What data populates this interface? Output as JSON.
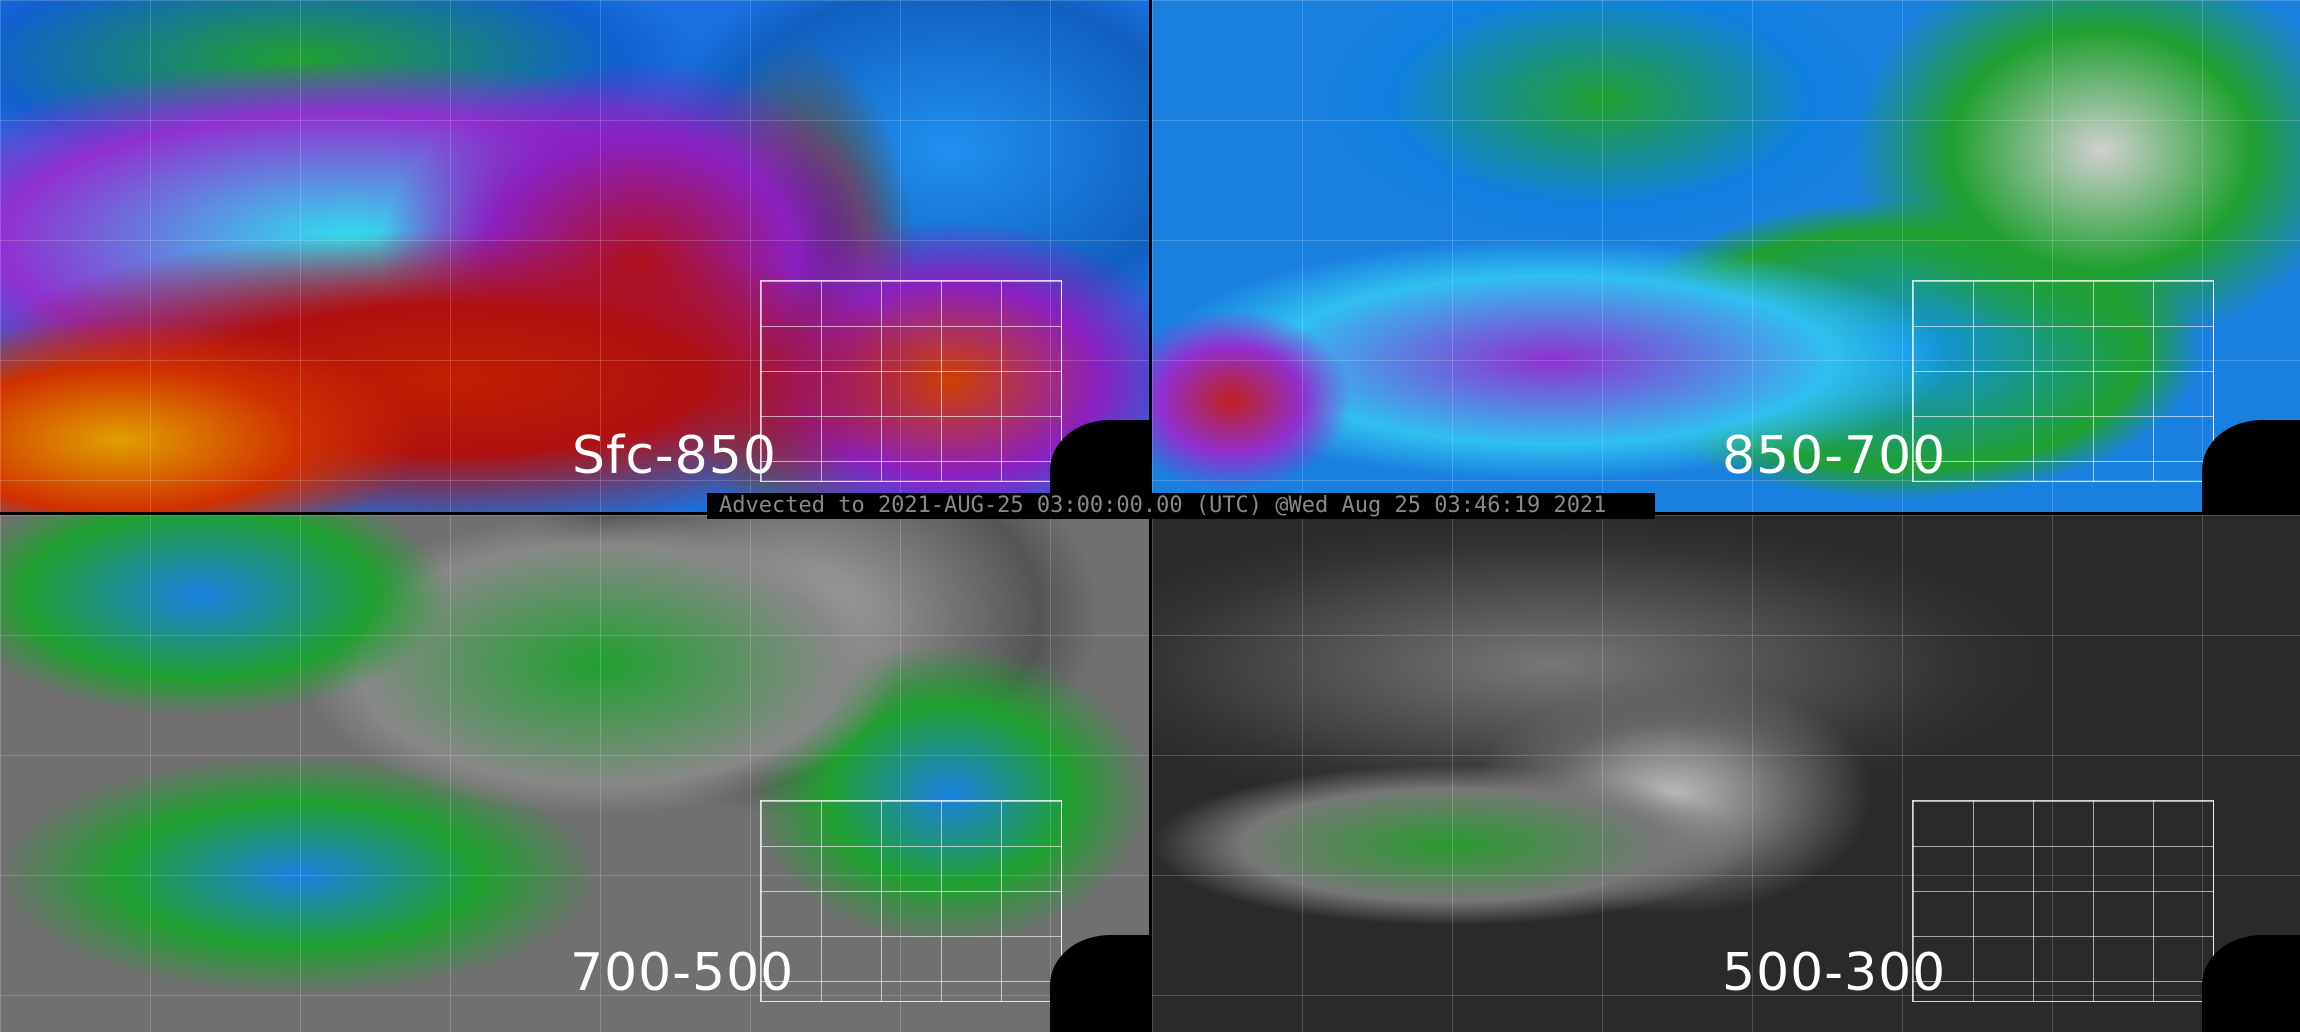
{
  "panels": [
    {
      "label": "Sfc-850"
    },
    {
      "label": "850-700"
    },
    {
      "label": "700-500"
    },
    {
      "label": "500-300"
    }
  ],
  "banner": {
    "text": "Advected to 2021-AUG-25 03:00:00.00 (UTC) @Wed Aug 25 03:46:19 2021"
  }
}
